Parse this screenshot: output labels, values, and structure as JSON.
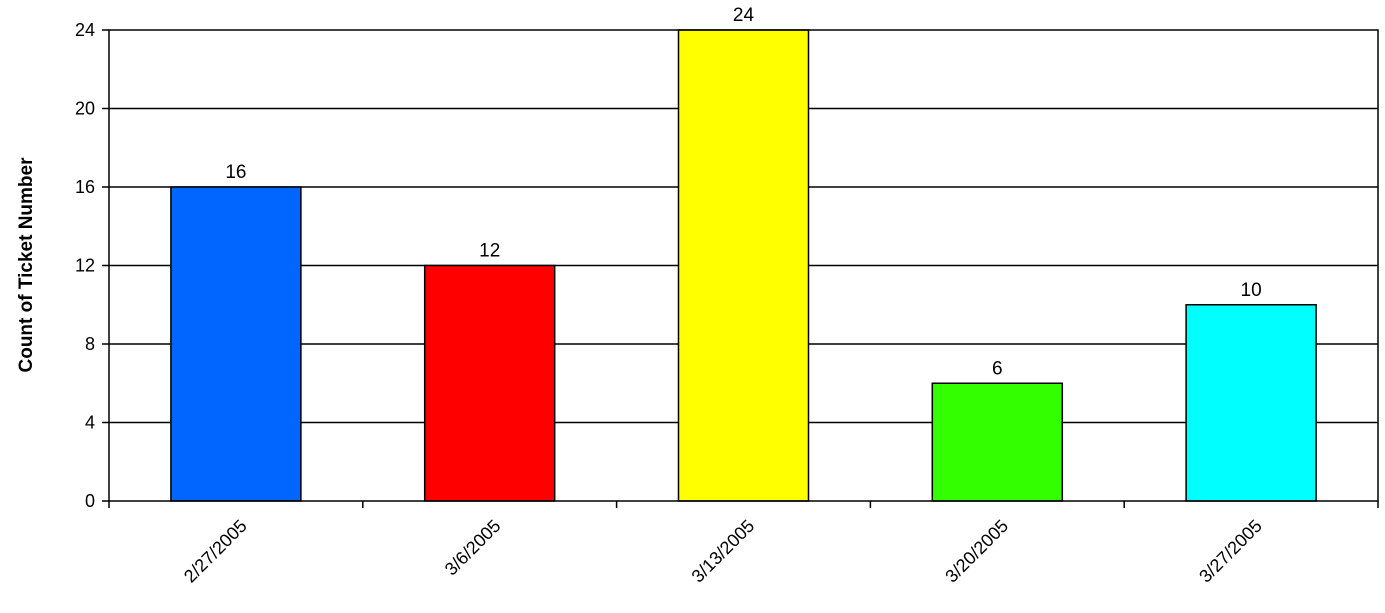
{
  "chart_data": {
    "type": "bar",
    "title": "",
    "xlabel": "",
    "ylabel": "Count of Ticket Number",
    "categories": [
      "2/27/2005",
      "3/6/2005",
      "3/13/2005",
      "3/20/2005",
      "3/27/2005"
    ],
    "values": [
      16,
      12,
      24,
      6,
      10
    ],
    "bar_colors": [
      "#0066FF",
      "#FF0000",
      "#FFFF00",
      "#33FF00",
      "#00FFFF"
    ],
    "ylim": [
      0,
      24
    ],
    "y_ticks": [
      0,
      4,
      8,
      12,
      16,
      20,
      24
    ],
    "y_tick_labels": [
      "0",
      "4",
      "8",
      "12",
      "16",
      "20",
      "24"
    ],
    "data_labels": [
      "16",
      "12",
      "24",
      "6",
      "10"
    ],
    "grid": true,
    "legend": "none"
  }
}
